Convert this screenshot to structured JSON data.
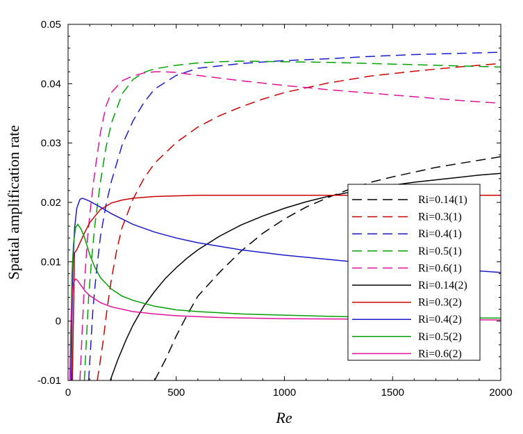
{
  "chart_data": {
    "type": "line",
    "title": "",
    "xlabel": "Re",
    "ylabel": "Spatial amplification rate",
    "xlim": [
      0,
      2000
    ],
    "ylim": [
      -0.01,
      0.05
    ],
    "xticks": [
      0,
      500,
      1000,
      1500,
      2000
    ],
    "yticks": [
      -0.01,
      0,
      0.01,
      0.02,
      0.03,
      0.04,
      0.05
    ],
    "xtick_labels": [
      "0",
      "500",
      "1000",
      "1500",
      "2000"
    ],
    "ytick_labels": [
      "-0.01",
      "0",
      "0.01",
      "0.02",
      "0.03",
      "0.04",
      "0.05"
    ],
    "grid": false,
    "legend_position": "right",
    "series": [
      {
        "name": "Ri=0.14(1)",
        "color": "#000000",
        "dash": true,
        "x": [
          400,
          450,
          500,
          550,
          600,
          700,
          800,
          900,
          1000,
          1100,
          1200,
          1300,
          1400,
          1500,
          1600,
          1700,
          1800,
          1900,
          2000
        ],
        "y": [
          -0.01,
          -0.0065,
          -0.0025,
          0.001,
          0.0042,
          0.0082,
          0.0118,
          0.0148,
          0.0172,
          0.0192,
          0.0208,
          0.0222,
          0.0234,
          0.0243,
          0.0251,
          0.0259,
          0.0265,
          0.0271,
          0.0277
        ]
      },
      {
        "name": "Ri=0.3(1)",
        "color": "#cc0000",
        "dash": true,
        "x": [
          135,
          160,
          180,
          200,
          225,
          250,
          300,
          350,
          400,
          500,
          600,
          700,
          800,
          900,
          1000,
          1200,
          1400,
          1600,
          1800,
          2000
        ],
        "y": [
          -0.01,
          -0.004,
          0.002,
          0.007,
          0.012,
          0.0158,
          0.0205,
          0.024,
          0.0266,
          0.0301,
          0.0327,
          0.0346,
          0.0361,
          0.0374,
          0.0385,
          0.0401,
          0.0413,
          0.0421,
          0.0428,
          0.0434
        ]
      },
      {
        "name": "Ri=0.4(1)",
        "color": "#1a1acc",
        "dash": true,
        "x": [
          95,
          105,
          115,
          130,
          150,
          175,
          200,
          250,
          300,
          350,
          400,
          500,
          600,
          800,
          1000,
          1200,
          1400,
          1600,
          1800,
          2000
        ],
        "y": [
          -0.01,
          -0.004,
          0.002,
          0.008,
          0.0143,
          0.0195,
          0.0235,
          0.0297,
          0.0337,
          0.0368,
          0.0391,
          0.0414,
          0.0426,
          0.0434,
          0.0439,
          0.0442,
          0.0446,
          0.0449,
          0.0451,
          0.0453
        ]
      },
      {
        "name": "Ri=0.5(1)",
        "color": "#00a000",
        "dash": true,
        "x": [
          75,
          85,
          95,
          110,
          125,
          150,
          175,
          200,
          250,
          300,
          350,
          400,
          500,
          600,
          700,
          800,
          1000,
          1200,
          1400,
          1600,
          1800,
          2000
        ],
        "y": [
          -0.01,
          -0.003,
          0.004,
          0.011,
          0.0165,
          0.0235,
          0.0292,
          0.0333,
          0.0383,
          0.0407,
          0.0419,
          0.0425,
          0.0431,
          0.0435,
          0.0437,
          0.0438,
          0.0437,
          0.0436,
          0.0434,
          0.0432,
          0.043,
          0.0428
        ]
      },
      {
        "name": "Ri=0.6(1)",
        "color": "#e0109a",
        "dash": true,
        "x": [
          55,
          65,
          75,
          90,
          105,
          125,
          150,
          175,
          200,
          250,
          300,
          350,
          400,
          450,
          500,
          600,
          800,
          1000,
          1200,
          1400,
          1600,
          1800,
          2000
        ],
        "y": [
          -0.01,
          -0.002,
          0.006,
          0.014,
          0.0195,
          0.0255,
          0.0318,
          0.0362,
          0.0385,
          0.0405,
          0.0413,
          0.0418,
          0.042,
          0.042,
          0.0419,
          0.0414,
          0.0405,
          0.0397,
          0.039,
          0.0384,
          0.0378,
          0.0372,
          0.0367
        ]
      },
      {
        "name": "Ri=0.14(2)",
        "color": "#000000",
        "dash": false,
        "x": [
          195,
          230,
          270,
          300,
          350,
          400,
          450,
          500,
          550,
          600,
          700,
          800,
          900,
          1000,
          1100,
          1200,
          1300,
          1400,
          1500,
          1600,
          1700,
          1800,
          1900,
          2000
        ],
        "y": [
          -0.01,
          -0.0065,
          -0.003,
          -0.0007,
          0.0025,
          0.005,
          0.0072,
          0.009,
          0.0106,
          0.012,
          0.0143,
          0.0162,
          0.0177,
          0.019,
          0.0201,
          0.021,
          0.0217,
          0.0224,
          0.0229,
          0.0234,
          0.0238,
          0.0242,
          0.0246,
          0.0249
        ]
      },
      {
        "name": "Ri=0.3(2)",
        "color": "#cc0000",
        "dash": false,
        "x": [
          20,
          25,
          30,
          40,
          50,
          75,
          100,
          150,
          200,
          250,
          300,
          400,
          500,
          600,
          800,
          1000,
          1200,
          1400,
          1600,
          1800,
          2000
        ],
        "y": [
          -0.01,
          0.001,
          0.0115,
          0.012,
          0.0128,
          0.0148,
          0.0166,
          0.0188,
          0.0199,
          0.0204,
          0.0207,
          0.021,
          0.0211,
          0.0212,
          0.0212,
          0.0212,
          0.0212,
          0.0212,
          0.0212,
          0.0212,
          0.0212
        ]
      },
      {
        "name": "Ri=0.4(2)",
        "color": "#1a1acc",
        "dash": false,
        "x": [
          15,
          18,
          22,
          30,
          40,
          55,
          65,
          75,
          100,
          150,
          200,
          300,
          400,
          500,
          600,
          700,
          800,
          1000,
          1200,
          1400,
          1600,
          1800,
          2000
        ],
        "y": [
          -0.01,
          0.0,
          0.009,
          0.0155,
          0.019,
          0.0205,
          0.0207,
          0.0206,
          0.0202,
          0.0192,
          0.0181,
          0.0163,
          0.015,
          0.014,
          0.0132,
          0.0126,
          0.012,
          0.0111,
          0.0104,
          0.0097,
          0.0092,
          0.0087,
          0.0082
        ]
      },
      {
        "name": "Ri=0.5(2)",
        "color": "#00a000",
        "dash": false,
        "x": [
          10,
          14,
          18,
          25,
          35,
          45,
          60,
          75,
          100,
          125,
          150,
          200,
          250,
          300,
          400,
          500,
          600,
          800,
          1000,
          1200,
          1500,
          2000
        ],
        "y": [
          -0.01,
          0.0,
          0.008,
          0.013,
          0.0158,
          0.0163,
          0.0155,
          0.0142,
          0.0112,
          0.009,
          0.0073,
          0.0054,
          0.0042,
          0.0035,
          0.0025,
          0.0019,
          0.0016,
          0.0012,
          0.001,
          0.0008,
          0.0006,
          0.0005
        ]
      },
      {
        "name": "Ri=0.6(2)",
        "color": "#e0109a",
        "dash": false,
        "x": [
          8,
          12,
          18,
          25,
          35,
          45,
          60,
          80,
          100,
          150,
          200,
          300,
          400,
          500,
          700,
          1000,
          1500,
          2000
        ],
        "y": [
          -0.01,
          -0.002,
          0.004,
          0.0065,
          0.0071,
          0.0068,
          0.006,
          0.005,
          0.0043,
          0.0031,
          0.0024,
          0.0016,
          0.0012,
          0.0009,
          0.0006,
          0.0004,
          0.0003,
          0.0002
        ]
      }
    ]
  }
}
